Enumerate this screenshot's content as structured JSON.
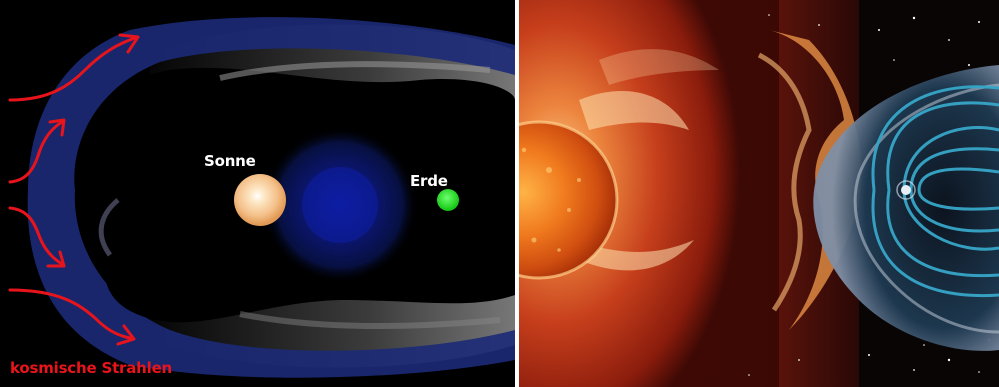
{
  "left_figure": {
    "sun_label": "Sonne",
    "earth_label": "Erde",
    "cosmic_rays_label": "kosmische Strahlen",
    "colors": {
      "background": "#000000",
      "heliosphere_band": "#1c2a78",
      "sun": "#f4c98d",
      "earth": "#1ed81e",
      "cosmic_rays": "#e8141c",
      "label": "#ffffff"
    }
  },
  "right_figure": {
    "colors": {
      "background": "#2a0600",
      "sun": "#e8611a",
      "solar_wind": "#c9301a",
      "magnetosphere": "#37a6c8",
      "space": "#0a0a0a"
    }
  }
}
